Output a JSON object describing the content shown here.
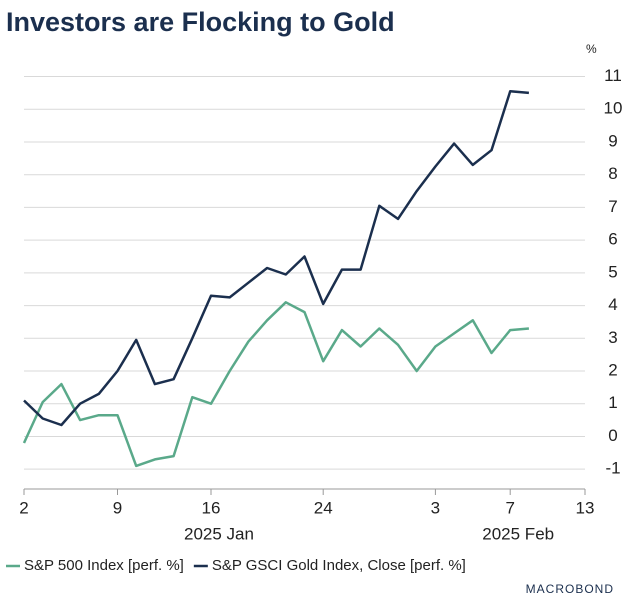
{
  "chart_data": {
    "type": "line",
    "title": "Investors are Flocking to Gold",
    "y_unit": "%",
    "x": [
      "2025-01-02",
      "2025-01-03",
      "2025-01-06",
      "2025-01-07",
      "2025-01-08",
      "2025-01-09",
      "2025-01-10",
      "2025-01-13",
      "2025-01-14",
      "2025-01-15",
      "2025-01-16",
      "2025-01-17",
      "2025-01-20",
      "2025-01-21",
      "2025-01-22",
      "2025-01-23",
      "2025-01-24",
      "2025-01-27",
      "2025-01-28",
      "2025-01-29",
      "2025-01-30",
      "2025-01-31",
      "2025-02-03",
      "2025-02-04",
      "2025-02-05",
      "2025-02-06",
      "2025-02-07",
      "2025-02-10"
    ],
    "series": [
      {
        "name": "S&P 500 Index [perf. %]",
        "color": "#5aa98a",
        "values": [
          -0.2,
          1.05,
          1.6,
          0.5,
          0.65,
          0.65,
          -0.9,
          -0.7,
          -0.6,
          1.2,
          1.0,
          2.0,
          2.9,
          3.55,
          4.1,
          3.8,
          2.3,
          3.25,
          2.75,
          3.3,
          2.8,
          2.0,
          2.75,
          3.15,
          3.55,
          2.55,
          3.25,
          3.3
        ]
      },
      {
        "name": "S&P GSCI Gold Index, Close [perf. %]",
        "color": "#1b2f4e",
        "values": [
          1.1,
          0.55,
          0.35,
          1.0,
          1.3,
          2.0,
          2.95,
          1.6,
          1.75,
          3.0,
          4.3,
          4.25,
          4.7,
          5.15,
          4.95,
          5.5,
          4.05,
          5.1,
          5.1,
          7.05,
          6.65,
          7.5,
          8.25,
          8.95,
          8.3,
          8.75,
          10.55,
          10.5
        ]
      }
    ],
    "xlim": [
      "2025-01-02",
      "2025-02-13"
    ],
    "xticks": [
      {
        "value": "2025-01-02",
        "label": "2"
      },
      {
        "value": "2025-01-09",
        "label": "9"
      },
      {
        "value": "2025-01-16",
        "label": "16"
      },
      {
        "value": "2025-01-24",
        "label": "24"
      },
      {
        "value": "2025-02-03",
        "label": "3"
      },
      {
        "value": "2025-02-07",
        "label": "7"
      },
      {
        "value": "2025-02-13",
        "label": "13"
      }
    ],
    "x_groups": [
      {
        "value": "2025-01-16",
        "label": "2025 Jan"
      },
      {
        "value": "2025-02-07",
        "label": "2025 Feb"
      }
    ],
    "ylim": [
      -1.3,
      11.2
    ],
    "yticks": [
      -1,
      0,
      1,
      2,
      3,
      4,
      5,
      6,
      7,
      8,
      9,
      10,
      11
    ],
    "grid": true,
    "legend": "bottom",
    "logo": "MACROBOND"
  }
}
